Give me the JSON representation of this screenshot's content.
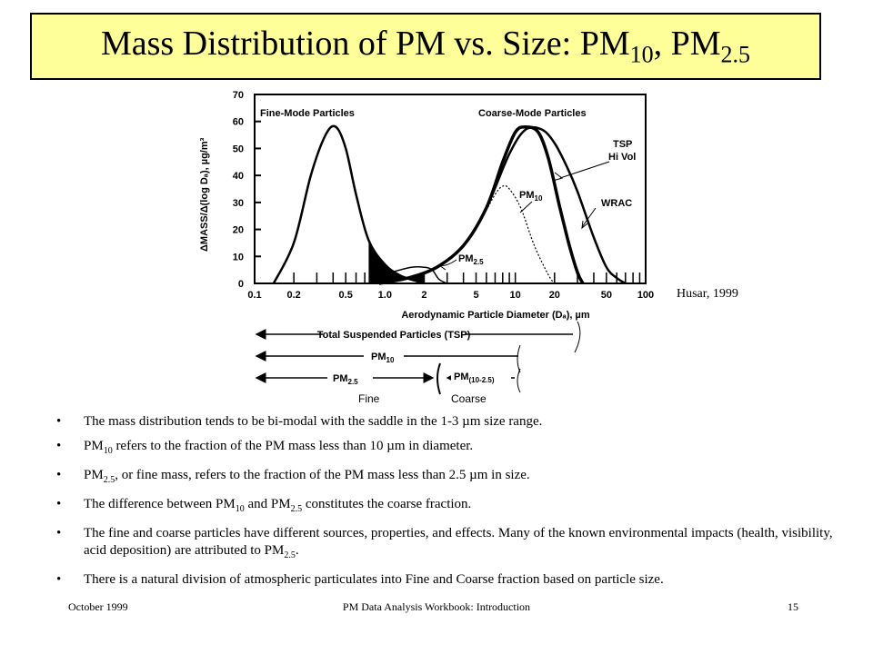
{
  "title": {
    "main": "Mass Distribution of PM vs. Size: PM",
    "sub1": "10",
    "mid": ", PM",
    "sub2": "2.5"
  },
  "credit": "Husar, 1999",
  "chart_data": {
    "type": "line",
    "xscale": "log",
    "xlim": [
      0.1,
      100
    ],
    "ylim": [
      0,
      70
    ],
    "xticks": [
      0.1,
      0.2,
      0.5,
      1.0,
      2,
      5,
      10,
      20,
      50,
      100
    ],
    "xtick_labels": [
      "0.1",
      "0.2",
      "0.5",
      "1.0",
      "2",
      "5",
      "10",
      "20",
      "50",
      "100"
    ],
    "yticks": [
      0,
      10,
      20,
      30,
      40,
      50,
      60,
      70
    ],
    "ytick_labels": [
      "0",
      "10",
      "20",
      "30",
      "40",
      "50",
      "60",
      "70"
    ],
    "xlabel": "Aerodynamic Particle Diameter (Dₐ), µm",
    "ylabel": "ΔMASS/Δ(log Dₐ), µg/m³",
    "annotations": {
      "fine_mode": "Fine-Mode Particles",
      "coarse_mode": "Coarse-Mode Particles",
      "tsp_line1": "TSP",
      "tsp_line2": "Hi Vol",
      "pm10": "PM",
      "pm10_sub": "10",
      "wrac": "WRAC",
      "pm25": "PM",
      "pm25_sub": "2.5"
    },
    "series": [
      {
        "key": "fine",
        "x": [
          0.14,
          0.2,
          0.27,
          0.35,
          0.42,
          0.5,
          0.6,
          0.75,
          1.0,
          1.3,
          1.7,
          2.0
        ],
        "y": [
          0,
          15,
          40,
          55,
          58,
          50,
          33,
          16,
          7,
          3,
          1,
          0
        ]
      },
      {
        "key": "wrac",
        "x": [
          0.9,
          1.5,
          2.5,
          4,
          6,
          9,
          12,
          16,
          20,
          25,
          30,
          40,
          50,
          60,
          70
        ],
        "y": [
          0,
          2,
          6,
          14,
          28,
          48,
          57,
          57,
          52,
          43,
          34,
          17,
          6,
          2,
          0
        ]
      },
      {
        "key": "tsp",
        "x": [
          0.9,
          1.5,
          2.5,
          4,
          6,
          8,
          10,
          12,
          15,
          18,
          22,
          26,
          30,
          33
        ],
        "y": [
          0,
          2,
          6,
          14,
          28,
          45,
          56,
          58,
          56,
          46,
          28,
          14,
          4,
          0
        ]
      },
      {
        "key": "pm10",
        "x": [
          2.5,
          4,
          5.5,
          7,
          8,
          9,
          11,
          14,
          18,
          20
        ],
        "y": [
          6,
          14,
          24,
          33,
          36,
          35,
          28,
          14,
          3,
          0
        ]
      },
      {
        "key": "pm25",
        "x": [
          0.8,
          1.2,
          1.6,
          2.0,
          2.3,
          2.6,
          3.0
        ],
        "y": [
          2,
          4.5,
          6,
          6,
          5,
          1.5,
          0
        ]
      }
    ]
  },
  "ranges": {
    "tsp": "Total Suspended Particles (TSP)",
    "pm10": "PM",
    "pm10_sub": "10",
    "pm25": "PM",
    "pm25_sub": "2.5",
    "pm1025": "PM",
    "pm1025_sub": "(10-2.5)",
    "fine": "Fine",
    "coarse": "Coarse"
  },
  "bullets": [
    {
      "text": "The mass distribution tends to be bi-modal with the saddle in the 1-3 µm size range."
    },
    {
      "p1": "PM",
      "s1": "10",
      "p2": " refers to the fraction of the PM mass less than 10 µm in diameter."
    },
    {
      "p1": "PM",
      "s1": "2.5",
      "p2": ", or fine mass, refers to the fraction of the PM mass less than 2.5 µm in size."
    },
    {
      "p1": "The difference between PM",
      "s1": "10",
      "p2": " and PM",
      "s2": "2.5",
      "p3": " constitutes the coarse fraction."
    },
    {
      "p1": "The fine and coarse particles have different sources, properties, and effects.  Many of the known environmental impacts (health, visibility, acid deposition) are attributed to PM",
      "s1": "2.5",
      "p2": "."
    },
    {
      "text": "There is a natural division of atmospheric particulates into Fine and Coarse fraction based on particle size."
    }
  ],
  "footer": {
    "left": "October 1999",
    "center": "PM Data Analysis Workbook: Introduction",
    "right": "15"
  }
}
